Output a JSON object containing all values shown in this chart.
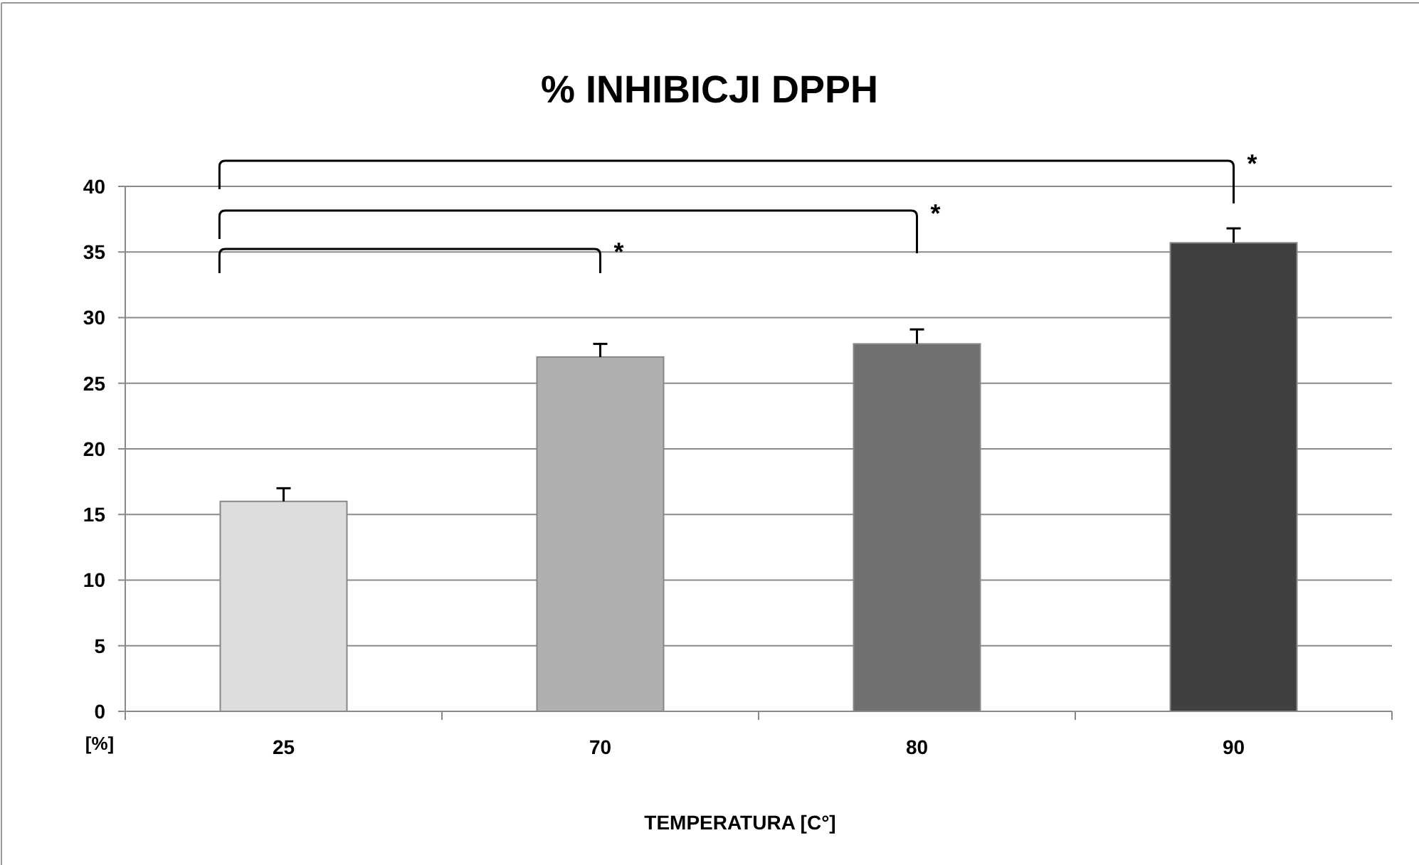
{
  "chart_data": {
    "type": "bar",
    "title": "% INHIBICJI DPPH",
    "xlabel": "TEMPERATURA  [C°]",
    "ylabel": "[%]",
    "categories": [
      "25",
      "70",
      "80",
      "90"
    ],
    "values": [
      16,
      27,
      28,
      35.7
    ],
    "errors": [
      1,
      1,
      1.1,
      1.1
    ],
    "colors": [
      "#dcdcdc",
      "#b0b0b0",
      "#707070",
      "#404040"
    ],
    "ylim": [
      0,
      40
    ],
    "yticks": [
      0,
      5,
      10,
      15,
      20,
      25,
      30,
      35,
      40
    ],
    "grid": "y",
    "annotations": [
      "*",
      "*",
      "*"
    ]
  }
}
